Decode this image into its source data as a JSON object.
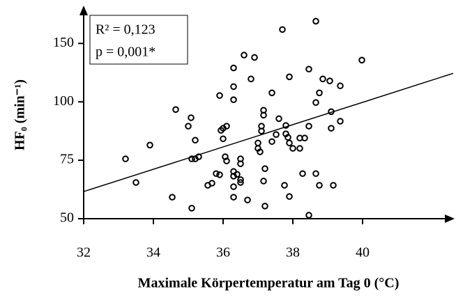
{
  "chart_data": {
    "type": "scatter",
    "xlabel": "Maximale Körpertemperatur am Tag 0 (°C)",
    "ylabel": "HF₀ (min⁻¹)",
    "annotations": [
      "R² = 0,123",
      "p = 0,001*"
    ],
    "xlim": [
      32,
      42.6
    ],
    "xticks": [
      32,
      34,
      36,
      38,
      40
    ],
    "ylim": [
      50,
      180
    ],
    "yticks": [
      50,
      75,
      100,
      150
    ],
    "y_scale": "piecewise",
    "color": "#000000",
    "x": [
      33.2,
      33.5,
      33.9,
      34.54,
      34.64,
      35.0,
      35.08,
      35.1,
      35.2,
      35.3,
      35.2,
      35.1,
      35.56,
      35.68,
      35.8,
      35.9,
      35.94,
      36.0,
      36.1,
      36.0,
      36.06,
      36.1,
      35.9,
      36.3,
      36.3,
      36.3,
      36.6,
      36.9,
      36.8,
      36.3,
      36.4,
      36.3,
      36.5,
      36.5,
      36.5,
      36.5,
      36.3,
      36.3,
      36.7,
      37.0,
      37.0,
      37.06,
      37.1,
      37.1,
      37.16,
      37.16,
      37.2,
      37.16,
      37.2,
      37.4,
      37.4,
      37.52,
      37.6,
      37.7,
      37.76,
      37.8,
      37.8,
      37.86,
      37.9,
      37.9,
      37.9,
      38.0,
      38.2,
      38.2,
      38.34,
      38.28,
      38.46,
      38.46,
      38.46,
      38.66,
      38.66,
      38.66,
      38.76,
      38.76,
      38.86,
      39.06,
      39.1,
      39.1,
      39.16,
      39.36,
      39.36,
      39.98
    ],
    "values": [
      75.6,
      65.5,
      81.5,
      59.2,
      96.7,
      89.6,
      93.2,
      75.6,
      75.6,
      76.5,
      83.6,
      54.5,
      64.3,
      65.2,
      69.3,
      68.8,
      87.8,
      88.7,
      89.6,
      84.2,
      76.5,
      74.7,
      105.4,
      101.8,
      113,
      129,
      140,
      138,
      119.6,
      70.2,
      69.0,
      68.2,
      75.6,
      73.5,
      66.7,
      65.5,
      63.7,
      59.2,
      58.0,
      82.4,
      80.1,
      78.6,
      89.6,
      87.5,
      96.4,
      94.3,
      71.4,
      66.1,
      55.4,
      107.7,
      83.0,
      86.0,
      92.8,
      161.9,
      64.3,
      89.9,
      86.3,
      84.8,
      82.4,
      121.4,
      59.5,
      80.1,
      80.1,
      84.5,
      84.5,
      69.3,
      89.6,
      128,
      51.5,
      169,
      99.7,
      69.3,
      107.7,
      64.3,
      119.6,
      117.9,
      95.8,
      88.7,
      64.3,
      113.7,
      91.7,
      135.7
    ],
    "trendline": {
      "x": [
        32,
        42.6
      ],
      "y": [
        61.6,
        124.4
      ]
    }
  }
}
